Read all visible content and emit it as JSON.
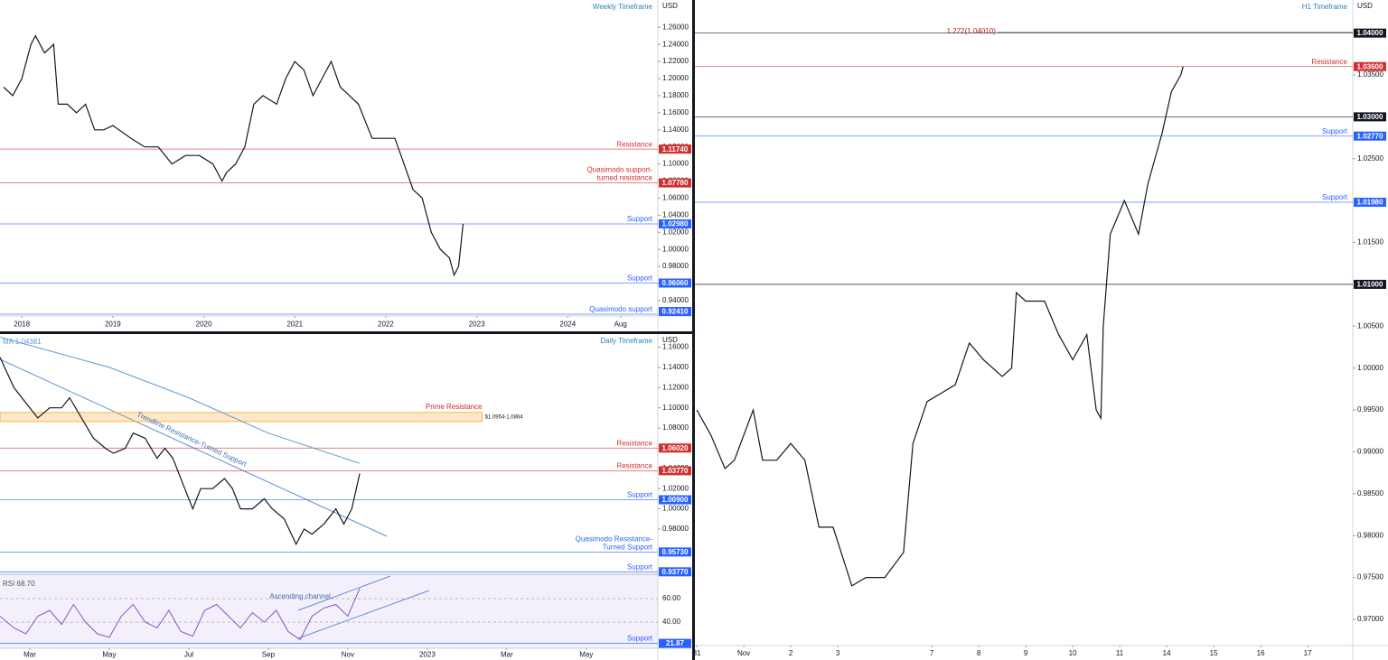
{
  "chart_data": [
    {
      "type": "line",
      "title": "Weekly Timeframe",
      "axis_label": "USD",
      "xlim": [
        2017.76,
        2024.99
      ],
      "xticks": [
        2018,
        2019,
        2020,
        2021,
        2022,
        2023,
        2024,
        {
          "value": 2024.58,
          "label": "Aug"
        }
      ],
      "ylim": [
        0.922,
        1.292
      ],
      "yticks": [
        {
          "value": 0.94,
          "label": "0.94000"
        },
        {
          "value": 0.96,
          "label": "0.96000"
        },
        {
          "value": 0.98,
          "label": "0.98000"
        },
        {
          "value": 1.0,
          "label": "1.00000"
        },
        {
          "value": 1.02,
          "label": "1.02000"
        },
        {
          "value": 1.04,
          "label": "1.04000"
        },
        {
          "value": 1.06,
          "label": "1.06000"
        },
        {
          "value": 1.08,
          "label": "1.08000"
        },
        {
          "value": 1.1,
          "label": "1.10000"
        },
        {
          "value": 1.12,
          "label": "1.12000"
        },
        {
          "value": 1.14,
          "label": "1.14000"
        },
        {
          "value": 1.16,
          "label": "1.16000"
        },
        {
          "value": 1.18,
          "label": "1.18000"
        },
        {
          "value": 1.2,
          "label": "1.20000"
        },
        {
          "value": 1.22,
          "label": "1.22000"
        },
        {
          "value": 1.24,
          "label": "1.24000"
        },
        {
          "value": 1.26,
          "label": "1.26000"
        }
      ],
      "series": [
        {
          "color": "#131722",
          "x": [
            2017.8,
            2017.9,
            2018.0,
            2018.1,
            2018.15,
            2018.25,
            2018.35,
            2018.4,
            2018.5,
            2018.6,
            2018.7,
            2018.8,
            2018.9,
            2019.0,
            2019.2,
            2019.35,
            2019.5,
            2019.65,
            2019.8,
            2019.95,
            2020.1,
            2020.2,
            2020.25,
            2020.35,
            2020.45,
            2020.55,
            2020.65,
            2020.8,
            2020.9,
            2021.0,
            2021.1,
            2021.2,
            2021.3,
            2021.4,
            2021.5,
            2021.6,
            2021.7,
            2021.85,
            2021.95,
            2022.1,
            2022.2,
            2022.3,
            2022.4,
            2022.5,
            2022.6,
            2022.7,
            2022.75,
            2022.8,
            2022.85
          ],
          "values": [
            1.19,
            1.18,
            1.2,
            1.24,
            1.25,
            1.23,
            1.24,
            1.17,
            1.17,
            1.16,
            1.17,
            1.14,
            1.14,
            1.145,
            1.13,
            1.12,
            1.12,
            1.1,
            1.11,
            1.11,
            1.1,
            1.08,
            1.09,
            1.1,
            1.12,
            1.17,
            1.18,
            1.17,
            1.2,
            1.22,
            1.21,
            1.18,
            1.2,
            1.22,
            1.19,
            1.18,
            1.17,
            1.13,
            1.13,
            1.13,
            1.1,
            1.07,
            1.06,
            1.02,
            1.0,
            0.99,
            0.97,
            0.98,
            1.03
          ]
        }
      ],
      "levels": [
        {
          "value": 1.1174,
          "label": "1.11740",
          "note": [
            "Resistance"
          ],
          "color": "#d32f2f"
        },
        {
          "value": 1.0778,
          "label": "1.07780",
          "note": [
            "Quasimodo support-",
            "turned resistance"
          ],
          "color": "#d32f2f"
        },
        {
          "value": 1.0298,
          "label": "1.02980",
          "note": [
            "Support"
          ],
          "color": "#2962ff"
        },
        {
          "value": 0.9606,
          "label": "0.96060",
          "note": [
            "Support"
          ],
          "color": "#2962ff"
        },
        {
          "value": 0.9241,
          "label": "0.92410",
          "note": [
            "Quasimodo support"
          ],
          "color": "#2962ff"
        }
      ]
    },
    {
      "type": "line",
      "title": "Daily Timeframe",
      "axis_label": "USD",
      "xlim": [
        1.25,
        17.8
      ],
      "xticks": [
        {
          "value": 2,
          "label": "Mar"
        },
        {
          "value": 4,
          "label": "May"
        },
        {
          "value": 6,
          "label": "Jul"
        },
        {
          "value": 8,
          "label": "Sep"
        },
        {
          "value": 10,
          "label": "Nov"
        },
        {
          "value": 12,
          "label": "2023"
        },
        {
          "value": 14,
          "label": "Mar"
        },
        {
          "value": 16,
          "label": "May"
        }
      ],
      "ylim": [
        0.9353,
        1.173
      ],
      "yticks": [
        {
          "value": 0.98,
          "label": "0.98000"
        },
        {
          "value": 1.0,
          "label": "1.00000"
        },
        {
          "value": 1.02,
          "label": "1.02000"
        },
        {
          "value": 1.04,
          "label": "1.04000"
        },
        {
          "value": 1.06,
          "label": "1.06000"
        },
        {
          "value": 1.08,
          "label": "1.08000"
        },
        {
          "value": 1.1,
          "label": "1.10000"
        },
        {
          "value": 1.12,
          "label": "1.12000"
        },
        {
          "value": 1.14,
          "label": "1.14000"
        },
        {
          "value": 1.16,
          "label": "1.16000"
        }
      ],
      "series": [
        {
          "color": "#131722",
          "x": [
            1.25,
            1.6,
            2.0,
            2.2,
            2.5,
            2.8,
            3.0,
            3.3,
            3.6,
            3.9,
            4.1,
            4.4,
            4.6,
            4.9,
            5.2,
            5.4,
            5.6,
            5.9,
            6.1,
            6.3,
            6.6,
            6.9,
            7.1,
            7.3,
            7.6,
            7.9,
            8.1,
            8.4,
            8.7,
            8.9,
            9.1,
            9.4,
            9.7,
            9.9,
            10.1,
            10.3
          ],
          "values": [
            1.15,
            1.12,
            1.1,
            1.09,
            1.1,
            1.1,
            1.11,
            1.09,
            1.07,
            1.06,
            1.055,
            1.06,
            1.075,
            1.07,
            1.05,
            1.06,
            1.05,
            1.02,
            1.0,
            1.02,
            1.02,
            1.03,
            1.02,
            1.0,
            1.0,
            1.01,
            1.0,
            0.99,
            0.965,
            0.98,
            0.975,
            0.985,
            1.0,
            0.985,
            1.0,
            1.035
          ]
        },
        {
          "name": "MA 1.04381",
          "color": "#5b9bd5",
          "x": [
            1.25,
            4,
            6,
            8,
            10.3
          ],
          "values": [
            1.17,
            1.14,
            1.11,
            1.075,
            1.045
          ]
        }
      ],
      "levels": [
        {
          "value": 1.0602,
          "label": "1.06020",
          "note": [
            "Resistance"
          ],
          "color": "#d32f2f"
        },
        {
          "value": 1.0377,
          "label": "1.03770",
          "note": [
            "Resistance"
          ],
          "color": "#d32f2f"
        },
        {
          "value": 1.009,
          "label": "1.00900",
          "note": [
            "Support"
          ],
          "color": "#2962ff"
        },
        {
          "value": 0.9573,
          "label": "0.95730",
          "note": [
            "Quasimodo Resistance-",
            "Turned Support"
          ],
          "color": "#2962ff"
        },
        {
          "value": 0.9377,
          "label": "0.93770",
          "note": [
            "Support"
          ],
          "color": "#2962ff"
        }
      ],
      "zone": {
        "low": 1.0864,
        "high": 1.0954,
        "note": "Prime Resistance",
        "label": "$1.0954-1.0864",
        "color": "#f9a825"
      },
      "annotation": "Trendline Resistance-Turned Support",
      "rsi": {
        "label": "RSI 68.70",
        "color": "#7e57c2",
        "ylim": [
          17.7,
          80.8
        ],
        "yticks": [
          {
            "value": 40,
            "label": "40.00"
          },
          {
            "value": 60,
            "label": "60.00"
          }
        ],
        "x": [
          1.25,
          1.6,
          1.9,
          2.2,
          2.5,
          2.8,
          3.1,
          3.4,
          3.7,
          4.0,
          4.3,
          4.6,
          4.9,
          5.2,
          5.5,
          5.8,
          6.1,
          6.4,
          6.7,
          7.0,
          7.3,
          7.6,
          7.9,
          8.2,
          8.5,
          8.8,
          9.1,
          9.4,
          9.7,
          10.0,
          10.3
        ],
        "values": [
          45,
          35,
          30,
          45,
          50,
          38,
          55,
          40,
          30,
          27,
          45,
          55,
          40,
          35,
          50,
          32,
          28,
          50,
          55,
          45,
          35,
          48,
          40,
          50,
          32,
          25,
          45,
          52,
          55,
          45,
          68.7
        ],
        "levels": [
          {
            "value": 21.87,
            "label": "21.87",
            "note": [
              "Support"
            ],
            "color": "#2962ff"
          }
        ],
        "annotation": "Ascending channel"
      }
    },
    {
      "type": "line",
      "title": "H1 Timeframe",
      "axis_label": "USD",
      "xlim": [
        -0.04,
        13.96
      ],
      "xticks": [
        {
          "value": 0,
          "label": "31"
        },
        {
          "value": 1,
          "label": "Nov"
        },
        {
          "value": 2,
          "label": "2"
        },
        {
          "value": 3,
          "label": "3"
        },
        {
          "value": 5,
          "label": "7"
        },
        {
          "value": 6,
          "label": "8"
        },
        {
          "value": 7,
          "label": "9"
        },
        {
          "value": 8,
          "label": "10"
        },
        {
          "value": 9,
          "label": "11"
        },
        {
          "value": 10,
          "label": "14"
        },
        {
          "value": 11,
          "label": "15"
        },
        {
          "value": 12,
          "label": "16"
        },
        {
          "value": 13,
          "label": "17"
        }
      ],
      "ylim": [
        0.96687,
        1.04395
      ],
      "yticks": [
        {
          "value": 0.97,
          "label": "0.97000"
        },
        {
          "value": 0.975,
          "label": "0.97500"
        },
        {
          "value": 0.98,
          "label": "0.98000"
        },
        {
          "value": 0.985,
          "label": "0.98500"
        },
        {
          "value": 0.99,
          "label": "0.99000"
        },
        {
          "value": 0.995,
          "label": "0.99500"
        },
        {
          "value": 1.0,
          "label": "1.00000"
        },
        {
          "value": 1.005,
          "label": "1.00500"
        },
        {
          "value": 1.015,
          "label": "1.01500"
        },
        {
          "value": 1.025,
          "label": "1.02500"
        },
        {
          "value": 1.035,
          "label": "1.03500"
        }
      ],
      "series": [
        {
          "color": "#131722",
          "x": [
            0,
            0.3,
            0.6,
            0.8,
            1.2,
            1.4,
            1.7,
            2.0,
            2.3,
            2.6,
            2.9,
            3.3,
            3.6,
            4.0,
            4.4,
            4.6,
            4.9,
            5.2,
            5.5,
            5.8,
            6.1,
            6.5,
            6.7,
            6.8,
            7.0,
            7.4,
            7.7,
            8.0,
            8.3,
            8.5,
            8.6,
            8.65,
            8.8,
            9.1,
            9.4,
            9.6,
            9.9,
            10.1,
            10.3,
            10.35
          ],
          "values": [
            0.995,
            0.992,
            0.988,
            0.989,
            0.995,
            0.989,
            0.989,
            0.991,
            0.989,
            0.981,
            0.981,
            0.974,
            0.975,
            0.975,
            0.978,
            0.991,
            0.996,
            0.997,
            0.998,
            1.003,
            1.001,
            0.999,
            1.0,
            1.009,
            1.008,
            1.008,
            1.004,
            1.001,
            1.004,
            0.995,
            0.994,
            1.005,
            1.016,
            1.02,
            1.016,
            1.022,
            1.028,
            1.033,
            1.035,
            1.036
          ]
        }
      ],
      "levels": [
        {
          "value": 1.04,
          "label": "1.04000",
          "note": [],
          "color": "#131722"
        },
        {
          "value": 1.036,
          "label": "1.03600",
          "note": [
            "Resistance"
          ],
          "color": "#d32f2f"
        },
        {
          "value": 1.03,
          "label": "1.03000",
          "note": [],
          "color": "#131722"
        },
        {
          "value": 1.0277,
          "label": "1.02770",
          "note": [
            "Support"
          ],
          "color": "#2962ff"
        },
        {
          "value": 1.0198,
          "label": "1.01980",
          "note": [
            "Support"
          ],
          "color": "#2962ff"
        },
        {
          "value": 1.01,
          "label": "1.01000",
          "note": [],
          "color": "#131722"
        }
      ],
      "fib": {
        "value": 1.0401,
        "label": "1.272(1.04010)",
        "color": "#b71c1c"
      }
    }
  ]
}
